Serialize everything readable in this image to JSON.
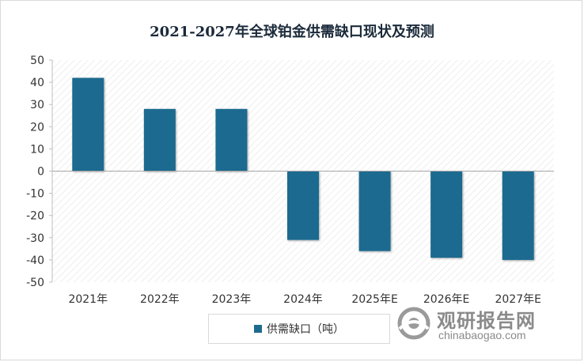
{
  "chart_data": {
    "type": "bar",
    "title": "2021-2027年全球铂金供需缺口现状及预测",
    "categories": [
      "2021年",
      "2022年",
      "2023年",
      "2024年",
      "2025年E",
      "2026年E",
      "2027年E"
    ],
    "series": [
      {
        "name": "供需缺口（吨）",
        "values": [
          42,
          28,
          28,
          -31,
          -36,
          -39,
          -40
        ]
      }
    ],
    "ylim": [
      -50,
      50
    ],
    "yticks": [
      50,
      40,
      30,
      20,
      10,
      0,
      -10,
      -20,
      -30,
      -40,
      -50
    ],
    "xlabel": "",
    "ylabel": "",
    "legend_position": "bottom",
    "grid": false,
    "bar_color": "#1f6b8f",
    "plot_background": "hatched"
  },
  "watermark": {
    "main": "观研报告网",
    "sub": "chinabaogao.com"
  }
}
